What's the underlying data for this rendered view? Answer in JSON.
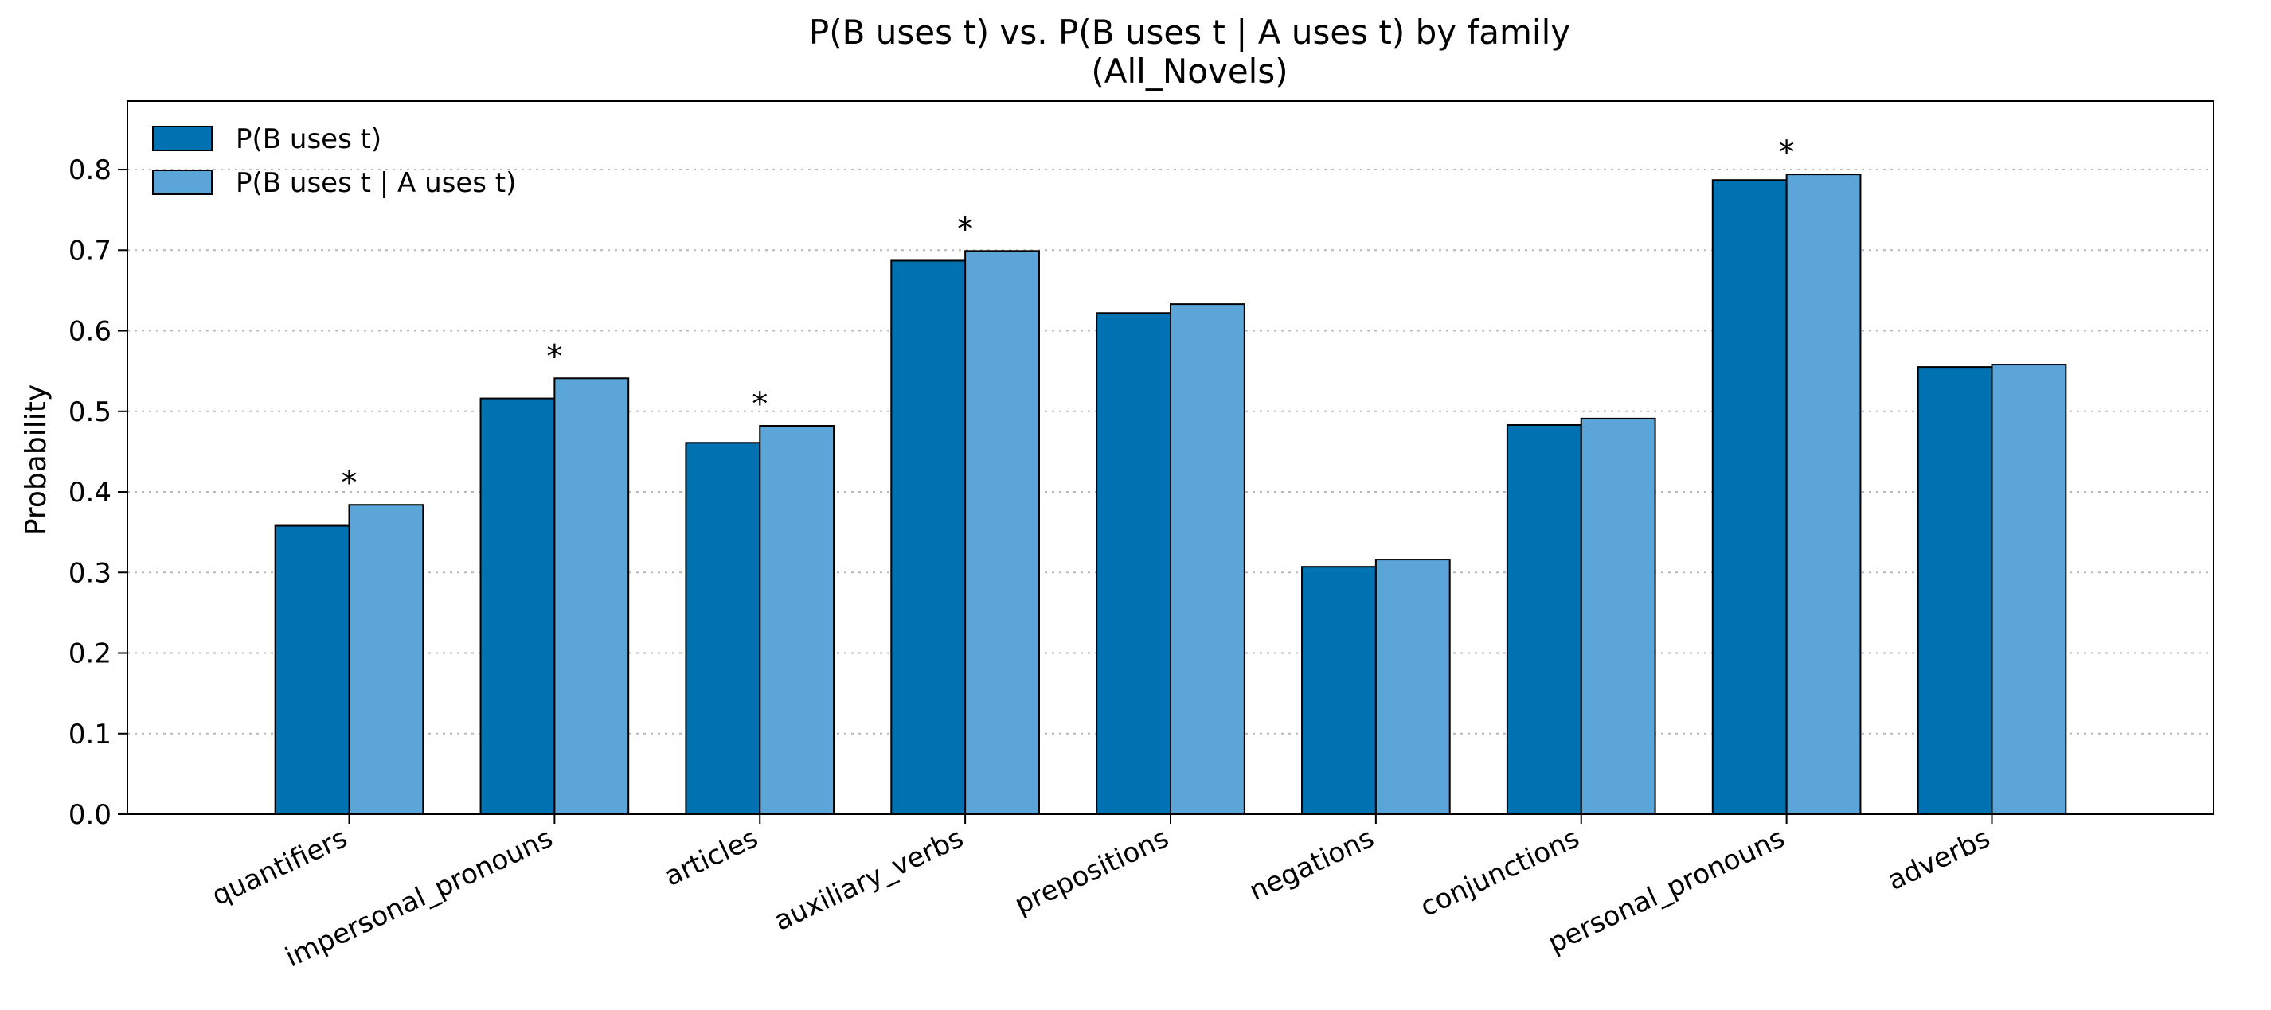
{
  "chart_data": {
    "type": "bar",
    "title": "P(B uses t) vs. P(B uses t | A uses t) by family",
    "subtitle": "(All_Novels)",
    "xlabel": "",
    "ylabel": "Probability",
    "ylim": [
      0,
      0.885
    ],
    "yticks": [
      "0.0",
      "0.1",
      "0.2",
      "0.3",
      "0.4",
      "0.5",
      "0.6",
      "0.7",
      "0.8"
    ],
    "grid": "horizontal dotted",
    "legend_position": "top-left",
    "categories": [
      "quantifiers",
      "impersonal_pronouns",
      "articles",
      "auxiliary_verbs",
      "prepositions",
      "negations",
      "conjunctions",
      "personal_pronouns",
      "adverbs"
    ],
    "series": [
      {
        "name": "P(B uses t)",
        "color": "#0072b2",
        "values": [
          0.358,
          0.516,
          0.461,
          0.687,
          0.622,
          0.307,
          0.483,
          0.787,
          0.555
        ]
      },
      {
        "name": "P(B uses t | A uses t)",
        "color": "#5ba5d8",
        "values": [
          0.384,
          0.541,
          0.482,
          0.699,
          0.633,
          0.316,
          0.491,
          0.794,
          0.558
        ]
      }
    ],
    "significance_marker": "*",
    "significant": [
      true,
      true,
      true,
      true,
      false,
      false,
      false,
      true,
      false
    ]
  }
}
